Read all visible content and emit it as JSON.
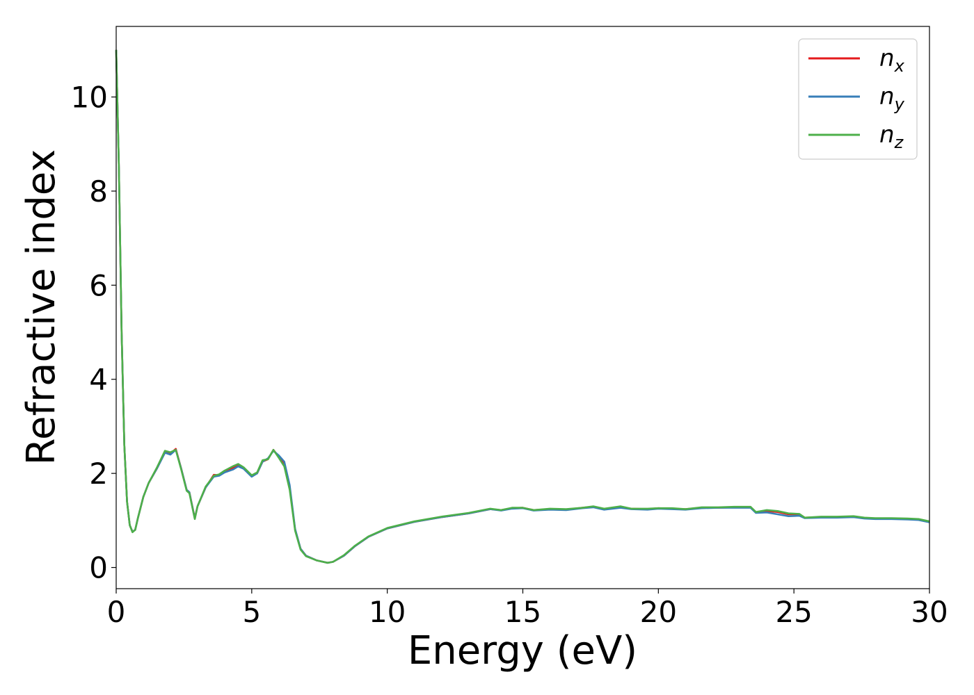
{
  "chart_data": {
    "type": "line",
    "title": "",
    "xlabel": "Energy (eV)",
    "ylabel": "Refractive index",
    "xlim": [
      0,
      30
    ],
    "ylim": [
      -0.45,
      11.5
    ],
    "xticks": [
      0,
      5,
      10,
      15,
      20,
      25,
      30
    ],
    "yticks": [
      0,
      2,
      4,
      6,
      8,
      10
    ],
    "grid": false,
    "legend_position": "top-right",
    "colors": {
      "n_x": "#e41a1c",
      "n_y": "#377eb8",
      "n_z": "#4daf4a"
    },
    "series": [
      {
        "name": "n_x",
        "base": "n",
        "sub": "x",
        "points": [
          [
            0,
            11.0
          ],
          [
            0.1,
            8.5
          ],
          [
            0.2,
            5.0
          ],
          [
            0.3,
            2.6
          ],
          [
            0.4,
            1.4
          ],
          [
            0.5,
            0.9
          ],
          [
            0.6,
            0.76
          ],
          [
            0.7,
            0.8
          ],
          [
            0.8,
            1.05
          ],
          [
            1.0,
            1.5
          ],
          [
            1.2,
            1.8
          ],
          [
            1.5,
            2.1
          ],
          [
            1.8,
            2.45
          ],
          [
            2.0,
            2.42
          ],
          [
            2.2,
            2.52
          ],
          [
            2.4,
            2.1
          ],
          [
            2.6,
            1.65
          ],
          [
            2.7,
            1.6
          ],
          [
            2.9,
            1.05
          ],
          [
            3.0,
            1.3
          ],
          [
            3.3,
            1.7
          ],
          [
            3.6,
            1.97
          ],
          [
            3.8,
            1.96
          ],
          [
            4.0,
            2.05
          ],
          [
            4.3,
            2.12
          ],
          [
            4.5,
            2.18
          ],
          [
            4.7,
            2.12
          ],
          [
            5.0,
            1.95
          ],
          [
            5.2,
            2.0
          ],
          [
            5.4,
            2.25
          ],
          [
            5.6,
            2.3
          ],
          [
            5.8,
            2.5
          ],
          [
            6.0,
            2.35
          ],
          [
            6.2,
            2.2
          ],
          [
            6.4,
            1.7
          ],
          [
            6.6,
            0.8
          ],
          [
            6.8,
            0.4
          ],
          [
            7.0,
            0.25
          ],
          [
            7.4,
            0.15
          ],
          [
            7.8,
            0.1
          ],
          [
            8.0,
            0.12
          ],
          [
            8.4,
            0.25
          ],
          [
            8.8,
            0.45
          ],
          [
            9.3,
            0.65
          ],
          [
            10.0,
            0.83
          ],
          [
            11.0,
            0.97
          ],
          [
            12.0,
            1.07
          ],
          [
            13.0,
            1.15
          ],
          [
            13.8,
            1.24
          ],
          [
            14.2,
            1.22
          ],
          [
            14.6,
            1.26
          ],
          [
            15.0,
            1.27
          ],
          [
            15.4,
            1.22
          ],
          [
            16.0,
            1.24
          ],
          [
            16.6,
            1.23
          ],
          [
            17.2,
            1.27
          ],
          [
            17.6,
            1.29
          ],
          [
            18.0,
            1.24
          ],
          [
            18.6,
            1.28
          ],
          [
            19.0,
            1.25
          ],
          [
            19.6,
            1.24
          ],
          [
            20.0,
            1.26
          ],
          [
            20.5,
            1.25
          ],
          [
            21.0,
            1.24
          ],
          [
            21.6,
            1.27
          ],
          [
            22.2,
            1.27
          ],
          [
            22.8,
            1.28
          ],
          [
            23.4,
            1.28
          ],
          [
            23.6,
            1.17
          ],
          [
            24.0,
            1.2
          ],
          [
            24.4,
            1.18
          ],
          [
            24.8,
            1.13
          ],
          [
            25.2,
            1.13
          ],
          [
            25.4,
            1.06
          ],
          [
            26.0,
            1.07
          ],
          [
            26.6,
            1.07
          ],
          [
            27.2,
            1.08
          ],
          [
            27.6,
            1.05
          ],
          [
            28.0,
            1.04
          ],
          [
            28.6,
            1.04
          ],
          [
            29.2,
            1.03
          ],
          [
            29.6,
            1.02
          ],
          [
            30.0,
            0.97
          ]
        ]
      },
      {
        "name": "n_y",
        "base": "n",
        "sub": "y",
        "points": [
          [
            0,
            11.0
          ],
          [
            0.1,
            8.5
          ],
          [
            0.2,
            5.0
          ],
          [
            0.3,
            2.6
          ],
          [
            0.4,
            1.4
          ],
          [
            0.5,
            0.9
          ],
          [
            0.6,
            0.76
          ],
          [
            0.7,
            0.8
          ],
          [
            0.8,
            1.05
          ],
          [
            1.0,
            1.5
          ],
          [
            1.2,
            1.8
          ],
          [
            1.5,
            2.1
          ],
          [
            1.8,
            2.44
          ],
          [
            2.0,
            2.4
          ],
          [
            2.2,
            2.5
          ],
          [
            2.4,
            2.1
          ],
          [
            2.6,
            1.65
          ],
          [
            2.7,
            1.6
          ],
          [
            2.9,
            1.04
          ],
          [
            3.0,
            1.3
          ],
          [
            3.3,
            1.7
          ],
          [
            3.6,
            1.93
          ],
          [
            3.8,
            1.95
          ],
          [
            4.0,
            2.02
          ],
          [
            4.3,
            2.08
          ],
          [
            4.5,
            2.15
          ],
          [
            4.7,
            2.1
          ],
          [
            5.0,
            1.93
          ],
          [
            5.2,
            2.0
          ],
          [
            5.4,
            2.25
          ],
          [
            5.6,
            2.32
          ],
          [
            5.8,
            2.48
          ],
          [
            6.0,
            2.38
          ],
          [
            6.2,
            2.25
          ],
          [
            6.4,
            1.75
          ],
          [
            6.6,
            0.82
          ],
          [
            6.8,
            0.4
          ],
          [
            7.0,
            0.25
          ],
          [
            7.4,
            0.15
          ],
          [
            7.8,
            0.1
          ],
          [
            8.0,
            0.12
          ],
          [
            8.4,
            0.25
          ],
          [
            8.8,
            0.45
          ],
          [
            9.3,
            0.65
          ],
          [
            10.0,
            0.83
          ],
          [
            11.0,
            0.97
          ],
          [
            12.0,
            1.07
          ],
          [
            13.0,
            1.15
          ],
          [
            13.8,
            1.24
          ],
          [
            14.2,
            1.21
          ],
          [
            14.6,
            1.25
          ],
          [
            15.0,
            1.26
          ],
          [
            15.4,
            1.21
          ],
          [
            16.0,
            1.23
          ],
          [
            16.6,
            1.22
          ],
          [
            17.2,
            1.26
          ],
          [
            17.6,
            1.28
          ],
          [
            18.0,
            1.23
          ],
          [
            18.6,
            1.27
          ],
          [
            19.0,
            1.24
          ],
          [
            19.6,
            1.23
          ],
          [
            20.0,
            1.25
          ],
          [
            20.5,
            1.24
          ],
          [
            21.0,
            1.23
          ],
          [
            21.6,
            1.26
          ],
          [
            22.2,
            1.27
          ],
          [
            22.8,
            1.27
          ],
          [
            23.4,
            1.27
          ],
          [
            23.6,
            1.16
          ],
          [
            24.0,
            1.17
          ],
          [
            24.4,
            1.13
          ],
          [
            24.8,
            1.09
          ],
          [
            25.2,
            1.1
          ],
          [
            25.4,
            1.05
          ],
          [
            26.0,
            1.06
          ],
          [
            26.6,
            1.06
          ],
          [
            27.2,
            1.07
          ],
          [
            27.6,
            1.04
          ],
          [
            28.0,
            1.03
          ],
          [
            28.6,
            1.03
          ],
          [
            29.2,
            1.02
          ],
          [
            29.6,
            1.01
          ],
          [
            30.0,
            0.96
          ]
        ]
      },
      {
        "name": "n_z",
        "base": "n",
        "sub": "z",
        "points": [
          [
            0,
            11.0
          ],
          [
            0.1,
            8.5
          ],
          [
            0.2,
            5.0
          ],
          [
            0.3,
            2.6
          ],
          [
            0.4,
            1.4
          ],
          [
            0.5,
            0.9
          ],
          [
            0.6,
            0.75
          ],
          [
            0.7,
            0.8
          ],
          [
            0.8,
            1.05
          ],
          [
            1.0,
            1.5
          ],
          [
            1.2,
            1.8
          ],
          [
            1.5,
            2.12
          ],
          [
            1.8,
            2.48
          ],
          [
            2.0,
            2.45
          ],
          [
            2.2,
            2.5
          ],
          [
            2.4,
            2.08
          ],
          [
            2.6,
            1.63
          ],
          [
            2.7,
            1.58
          ],
          [
            2.9,
            1.03
          ],
          [
            3.0,
            1.3
          ],
          [
            3.3,
            1.72
          ],
          [
            3.6,
            1.95
          ],
          [
            3.8,
            1.98
          ],
          [
            4.0,
            2.06
          ],
          [
            4.3,
            2.15
          ],
          [
            4.5,
            2.2
          ],
          [
            4.7,
            2.13
          ],
          [
            5.0,
            1.96
          ],
          [
            5.2,
            2.02
          ],
          [
            5.4,
            2.28
          ],
          [
            5.6,
            2.3
          ],
          [
            5.8,
            2.5
          ],
          [
            6.0,
            2.33
          ],
          [
            6.2,
            2.15
          ],
          [
            6.4,
            1.65
          ],
          [
            6.6,
            0.78
          ],
          [
            6.8,
            0.38
          ],
          [
            7.0,
            0.24
          ],
          [
            7.4,
            0.15
          ],
          [
            7.8,
            0.1
          ],
          [
            8.0,
            0.12
          ],
          [
            8.4,
            0.26
          ],
          [
            8.8,
            0.46
          ],
          [
            9.3,
            0.66
          ],
          [
            10.0,
            0.84
          ],
          [
            11.0,
            0.98
          ],
          [
            12.0,
            1.08
          ],
          [
            13.0,
            1.16
          ],
          [
            13.8,
            1.25
          ],
          [
            14.2,
            1.22
          ],
          [
            14.6,
            1.27
          ],
          [
            15.0,
            1.27
          ],
          [
            15.4,
            1.22
          ],
          [
            16.0,
            1.25
          ],
          [
            16.6,
            1.24
          ],
          [
            17.2,
            1.27
          ],
          [
            17.6,
            1.3
          ],
          [
            18.0,
            1.25
          ],
          [
            18.6,
            1.3
          ],
          [
            19.0,
            1.25
          ],
          [
            19.6,
            1.25
          ],
          [
            20.0,
            1.26
          ],
          [
            20.5,
            1.26
          ],
          [
            21.0,
            1.24
          ],
          [
            21.6,
            1.28
          ],
          [
            22.2,
            1.28
          ],
          [
            22.8,
            1.29
          ],
          [
            23.4,
            1.29
          ],
          [
            23.6,
            1.18
          ],
          [
            24.0,
            1.22
          ],
          [
            24.4,
            1.2
          ],
          [
            24.8,
            1.15
          ],
          [
            25.2,
            1.14
          ],
          [
            25.4,
            1.06
          ],
          [
            26.0,
            1.08
          ],
          [
            26.6,
            1.08
          ],
          [
            27.2,
            1.09
          ],
          [
            27.6,
            1.06
          ],
          [
            28.0,
            1.05
          ],
          [
            28.6,
            1.05
          ],
          [
            29.2,
            1.04
          ],
          [
            29.6,
            1.03
          ],
          [
            30.0,
            0.98
          ]
        ]
      }
    ]
  }
}
